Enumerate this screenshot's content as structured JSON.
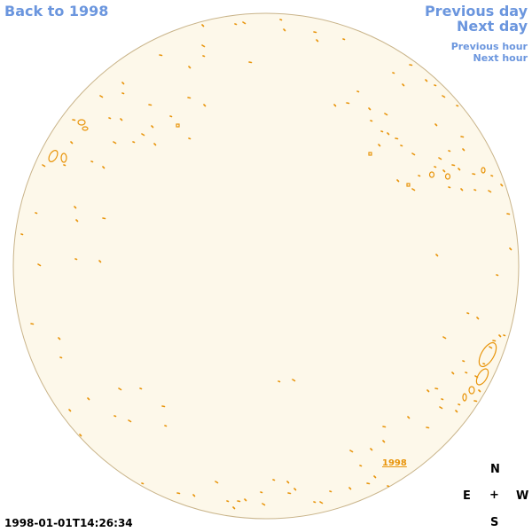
{
  "nav": {
    "back_label": "Back to 1998",
    "prev_day_label": "Previous day",
    "next_day_label": "Next day",
    "prev_hour_label": "Previous hour",
    "next_hour_label": "Next hour"
  },
  "compass": {
    "north": "N",
    "east": "E",
    "center": "+",
    "west": "W",
    "south": "S"
  },
  "timestamp": "1998-01-01T14:26:34",
  "year_tag": "1998",
  "colors": {
    "disk_fill": "#fdf8ea",
    "disk_outline": "#c9b48a",
    "contour": "#e8940a",
    "nav_link": "#6b96de"
  }
}
